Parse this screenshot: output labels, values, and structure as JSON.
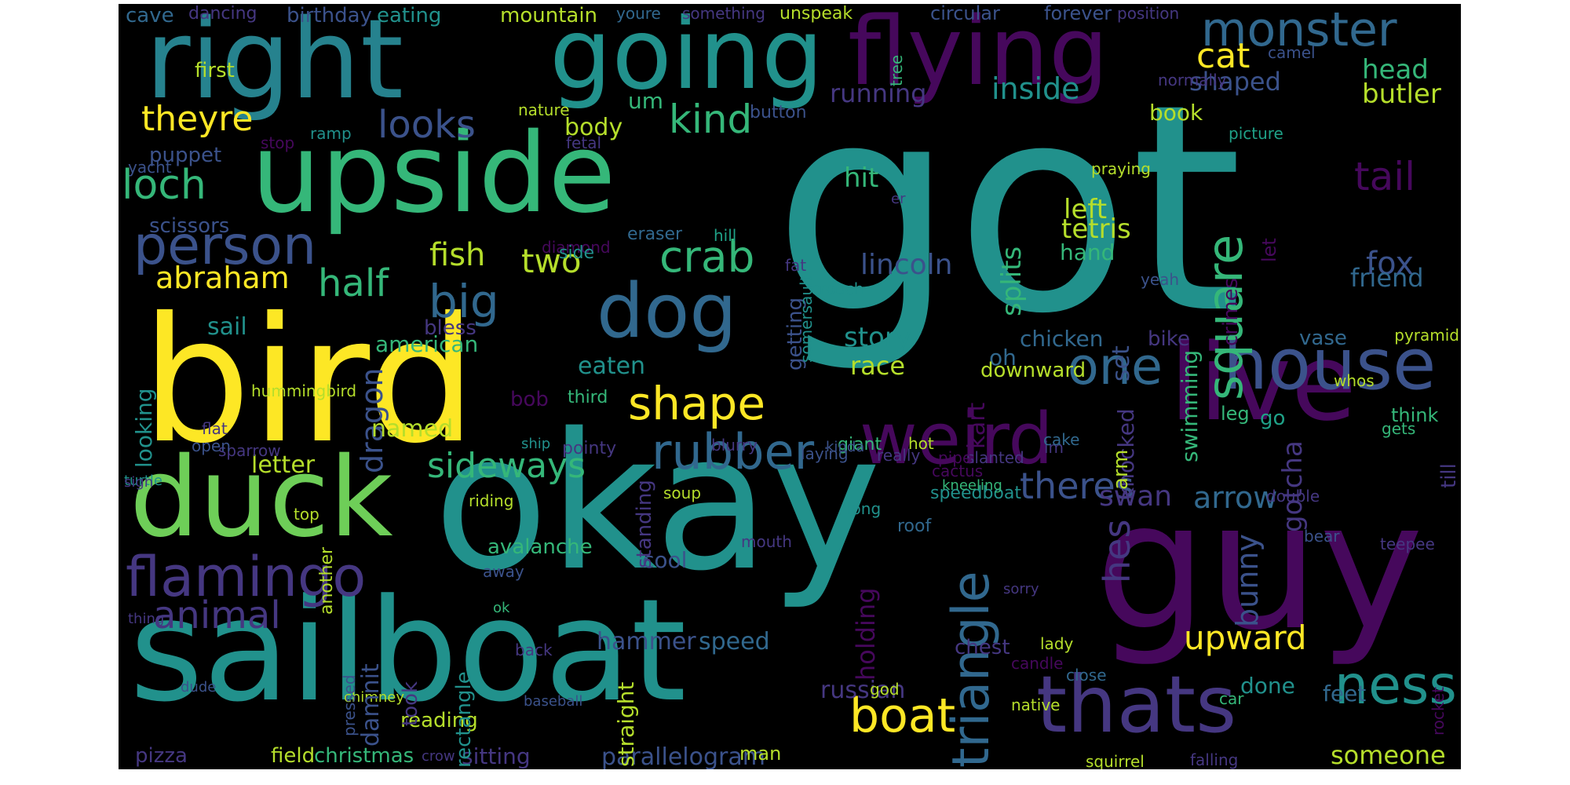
{
  "palette": {
    "background": "#000000",
    "purple": "#46085c",
    "indigo": "#453781",
    "blue": "#3b528b",
    "steel": "#31688e",
    "teal": "#26828e",
    "sea": "#21918c",
    "green": "#1fa187",
    "mint": "#35b779",
    "lime": "#6ece58",
    "chartreuse": "#b5de2b",
    "yellow": "#fde725"
  },
  "words": [
    {
      "text": "got",
      "color": "sea"
    },
    {
      "text": "okay",
      "color": "sea"
    },
    {
      "text": "bird",
      "color": "yellow"
    },
    {
      "text": "sailboat",
      "color": "sea"
    },
    {
      "text": "guy",
      "color": "purple"
    },
    {
      "text": "upside",
      "color": "mint"
    },
    {
      "text": "duck",
      "color": "lime"
    },
    {
      "text": "live",
      "color": "purple"
    },
    {
      "text": "right",
      "color": "teal"
    },
    {
      "text": "going",
      "color": "sea"
    },
    {
      "text": "flying",
      "color": "purple"
    },
    {
      "text": "weird",
      "color": "purple"
    },
    {
      "text": "thats",
      "color": "indigo"
    },
    {
      "text": "house",
      "color": "blue"
    },
    {
      "text": "dog",
      "color": "steel"
    },
    {
      "text": "flamingo",
      "color": "indigo"
    },
    {
      "text": "person",
      "color": "blue"
    },
    {
      "text": "monster",
      "color": "steel"
    },
    {
      "text": "rubber",
      "color": "steel"
    },
    {
      "text": "crab",
      "color": "mint"
    },
    {
      "text": "shape",
      "color": "yellow"
    },
    {
      "text": "boat",
      "color": "yellow"
    },
    {
      "text": "triangle",
      "color": "steel"
    },
    {
      "text": "ness",
      "color": "sea"
    },
    {
      "text": "one",
      "color": "steel"
    },
    {
      "text": "loch",
      "color": "mint"
    },
    {
      "text": "big",
      "color": "steel"
    },
    {
      "text": "square",
      "color": "mint"
    },
    {
      "text": "theres",
      "color": "blue"
    },
    {
      "text": "sideways",
      "color": "mint"
    },
    {
      "text": "animal",
      "color": "indigo"
    },
    {
      "text": "theyre",
      "color": "yellow"
    },
    {
      "text": "tail",
      "color": "purple"
    },
    {
      "text": "abraham",
      "color": "yellow"
    },
    {
      "text": "half",
      "color": "mint"
    },
    {
      "text": "looks",
      "color": "blue"
    },
    {
      "text": "kind",
      "color": "mint"
    },
    {
      "text": "two",
      "color": "chartreuse"
    },
    {
      "text": "swan",
      "color": "indigo"
    },
    {
      "text": "arrow",
      "color": "steel"
    },
    {
      "text": "upward",
      "color": "yellow"
    },
    {
      "text": "hes",
      "color": "indigo"
    },
    {
      "text": "bunny",
      "color": "blue"
    },
    {
      "text": "gotcha",
      "color": "indigo"
    },
    {
      "text": "cat",
      "color": "yellow"
    },
    {
      "text": "head",
      "color": "mint"
    },
    {
      "text": "butler",
      "color": "chartreuse"
    },
    {
      "text": "inside",
      "color": "sea"
    },
    {
      "text": "fox",
      "color": "blue"
    },
    {
      "text": "friend",
      "color": "steel"
    },
    {
      "text": "shaped",
      "color": "blue"
    },
    {
      "text": "lincoln",
      "color": "blue"
    },
    {
      "text": "story",
      "color": "sea"
    },
    {
      "text": "race",
      "color": "chartreuse"
    },
    {
      "text": "fish",
      "color": "chartreuse"
    },
    {
      "text": "hit",
      "color": "mint"
    },
    {
      "text": "left",
      "color": "chartreuse"
    },
    {
      "text": "tetris",
      "color": "chartreuse"
    },
    {
      "text": "hand",
      "color": "mint"
    },
    {
      "text": "running",
      "color": "indigo"
    },
    {
      "text": "um",
      "color": "mint"
    },
    {
      "text": "body",
      "color": "chartreuse"
    },
    {
      "text": "hammer",
      "color": "blue"
    },
    {
      "text": "speed",
      "color": "steel"
    },
    {
      "text": "russian",
      "color": "indigo"
    },
    {
      "text": "someone",
      "color": "chartreuse"
    },
    {
      "text": "feet",
      "color": "steel"
    },
    {
      "text": "done",
      "color": "sea"
    },
    {
      "text": "eaten",
      "color": "sea"
    },
    {
      "text": "letter",
      "color": "chartreuse"
    },
    {
      "text": "dragon",
      "color": "blue"
    },
    {
      "text": "looking",
      "color": "sea"
    },
    {
      "text": "sail",
      "color": "sea"
    },
    {
      "text": "american",
      "color": "mint"
    },
    {
      "text": "scissors",
      "color": "blue"
    },
    {
      "text": "puppet",
      "color": "blue"
    },
    {
      "text": "first",
      "color": "chartreuse"
    },
    {
      "text": "cave",
      "color": "steel"
    },
    {
      "text": "dancing",
      "color": "indigo"
    },
    {
      "text": "birthday",
      "color": "blue"
    },
    {
      "text": "eating",
      "color": "sea"
    },
    {
      "text": "mountain",
      "color": "chartreuse"
    },
    {
      "text": "youre",
      "color": "steel"
    },
    {
      "text": "something",
      "color": "indigo"
    },
    {
      "text": "unspeak",
      "color": "chartreuse"
    },
    {
      "text": "circular",
      "color": "blue"
    },
    {
      "text": "forever",
      "color": "blue"
    },
    {
      "text": "position",
      "color": "indigo"
    },
    {
      "text": "camel",
      "color": "blue"
    },
    {
      "text": "normally",
      "color": "indigo"
    },
    {
      "text": "button",
      "color": "blue"
    },
    {
      "text": "nature",
      "color": "chartreuse"
    },
    {
      "text": "book",
      "color": "chartreuse"
    },
    {
      "text": "picture",
      "color": "green"
    },
    {
      "text": "ramp",
      "color": "sea"
    },
    {
      "text": "stop",
      "color": "purple"
    },
    {
      "text": "fetal",
      "color": "indigo"
    },
    {
      "text": "yacht",
      "color": "blue"
    },
    {
      "text": "praying",
      "color": "chartreuse"
    },
    {
      "text": "er",
      "color": "indigo"
    },
    {
      "text": "hill",
      "color": "green"
    },
    {
      "text": "diamond",
      "color": "purple"
    },
    {
      "text": "eraser",
      "color": "steel"
    },
    {
      "text": "side",
      "color": "sea"
    },
    {
      "text": "yeah",
      "color": "blue"
    },
    {
      "text": "fat",
      "color": "indigo"
    },
    {
      "text": "crouch",
      "color": "sea"
    },
    {
      "text": "bless",
      "color": "indigo"
    },
    {
      "text": "chicken",
      "color": "steel"
    },
    {
      "text": "bike",
      "color": "indigo"
    },
    {
      "text": "vase",
      "color": "steel"
    },
    {
      "text": "whos",
      "color": "chartreuse"
    },
    {
      "text": "pyramid",
      "color": "chartreuse"
    },
    {
      "text": "oh",
      "color": "steel"
    },
    {
      "text": "downward",
      "color": "chartreuse"
    },
    {
      "text": "kart",
      "color": "purple"
    },
    {
      "text": "set",
      "color": "blue"
    },
    {
      "text": "knocked",
      "color": "indigo"
    },
    {
      "text": "arm",
      "color": "chartreuse"
    },
    {
      "text": "leg",
      "color": "mint"
    },
    {
      "text": "think",
      "color": "mint"
    },
    {
      "text": "go",
      "color": "green"
    },
    {
      "text": "gets",
      "color": "mint"
    },
    {
      "text": "hummingbird",
      "color": "chartreuse"
    },
    {
      "text": "named",
      "color": "chartreuse"
    },
    {
      "text": "bob",
      "color": "purple"
    },
    {
      "text": "third",
      "color": "mint"
    },
    {
      "text": "im",
      "color": "indigo"
    },
    {
      "text": "cake",
      "color": "steel"
    },
    {
      "text": "slanted",
      "color": "indigo"
    },
    {
      "text": "pipe",
      "color": "purple"
    },
    {
      "text": "flat",
      "color": "indigo"
    },
    {
      "text": "sparrow",
      "color": "indigo"
    },
    {
      "text": "ship",
      "color": "sea"
    },
    {
      "text": "pointy",
      "color": "indigo"
    },
    {
      "text": "giant",
      "color": "mint"
    },
    {
      "text": "blurry",
      "color": "indigo"
    },
    {
      "text": "really",
      "color": "indigo"
    },
    {
      "text": "open",
      "color": "blue"
    },
    {
      "text": "hot",
      "color": "chartreuse"
    },
    {
      "text": "kinda",
      "color": "blue"
    },
    {
      "text": "laying",
      "color": "blue"
    },
    {
      "text": "cactus",
      "color": "purple"
    },
    {
      "text": "speedboat",
      "color": "sea"
    },
    {
      "text": "kneeling",
      "color": "mint"
    },
    {
      "text": "turtle",
      "color": "sea"
    },
    {
      "text": "sign",
      "color": "indigo"
    },
    {
      "text": "riding",
      "color": "chartreuse"
    },
    {
      "text": "soup",
      "color": "chartreuse"
    },
    {
      "text": "long",
      "color": "sea"
    },
    {
      "text": "double",
      "color": "indigo"
    },
    {
      "text": "top",
      "color": "chartreuse"
    },
    {
      "text": "avalanche",
      "color": "mint"
    },
    {
      "text": "cool",
      "color": "blue"
    },
    {
      "text": "mouth",
      "color": "indigo"
    },
    {
      "text": "roof",
      "color": "steel"
    },
    {
      "text": "bear",
      "color": "blue"
    },
    {
      "text": "teepee",
      "color": "indigo"
    },
    {
      "text": "thing",
      "color": "indigo"
    },
    {
      "text": "away",
      "color": "blue"
    },
    {
      "text": "ok",
      "color": "mint"
    },
    {
      "text": "back",
      "color": "indigo"
    },
    {
      "text": "sorry",
      "color": "indigo"
    },
    {
      "text": "lady",
      "color": "chartreuse"
    },
    {
      "text": "chest",
      "color": "indigo"
    },
    {
      "text": "candle",
      "color": "purple"
    },
    {
      "text": "close",
      "color": "steel"
    },
    {
      "text": "dude",
      "color": "blue"
    },
    {
      "text": "chimney",
      "color": "chartreuse"
    },
    {
      "text": "god",
      "color": "chartreuse"
    },
    {
      "text": "native",
      "color": "chartreuse"
    },
    {
      "text": "car",
      "color": "mint"
    },
    {
      "text": "baseball",
      "color": "blue"
    },
    {
      "text": "pizza",
      "color": "indigo"
    },
    {
      "text": "field",
      "color": "chartreuse"
    },
    {
      "text": "christmas",
      "color": "mint"
    },
    {
      "text": "crow",
      "color": "indigo"
    },
    {
      "text": "sitting",
      "color": "indigo"
    },
    {
      "text": "parallelogram",
      "color": "blue"
    },
    {
      "text": "man",
      "color": "chartreuse"
    },
    {
      "text": "squirrel",
      "color": "chartreuse"
    },
    {
      "text": "falling",
      "color": "indigo"
    },
    {
      "text": "reading",
      "color": "chartreuse"
    },
    {
      "text": "damnit",
      "color": "blue"
    },
    {
      "text": "took",
      "color": "indigo"
    },
    {
      "text": "rectangle",
      "color": "sea"
    },
    {
      "text": "pressed",
      "color": "blue"
    },
    {
      "text": "another",
      "color": "chartreuse"
    },
    {
      "text": "straight",
      "color": "chartreuse"
    },
    {
      "text": "standing",
      "color": "indigo"
    },
    {
      "text": "getting",
      "color": "blue"
    },
    {
      "text": "splits",
      "color": "mint"
    },
    {
      "text": "somersault",
      "color": "sea"
    },
    {
      "text": "holding",
      "color": "purple"
    },
    {
      "text": "swimming",
      "color": "mint"
    },
    {
      "text": "crimes",
      "color": "purple"
    },
    {
      "text": "let",
      "color": "purple"
    },
    {
      "text": "till",
      "color": "indigo"
    },
    {
      "text": "rocket",
      "color": "purple"
    },
    {
      "text": "tree",
      "color": "mint"
    }
  ]
}
